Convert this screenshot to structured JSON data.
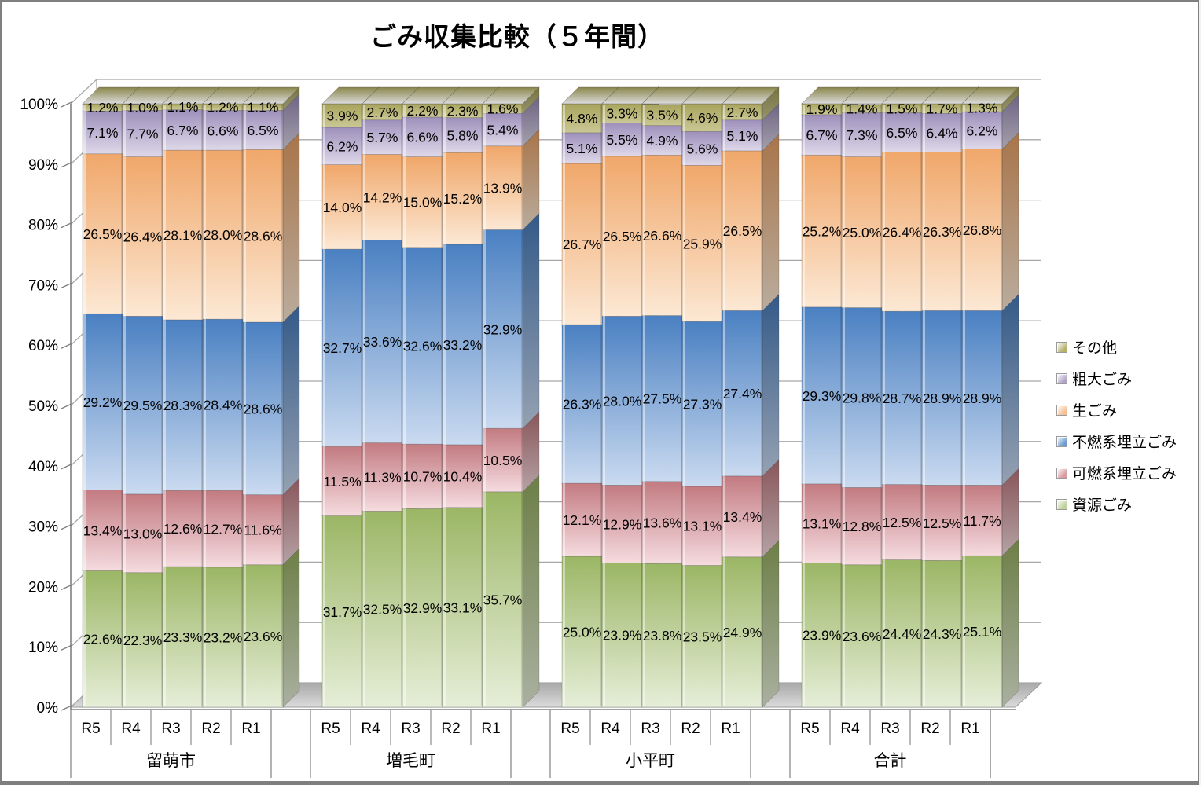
{
  "title": "ごみ収集比較（５年間）",
  "legend": {
    "items": [
      {
        "label": "その他",
        "color": "#b5b16d"
      },
      {
        "label": "粗大ごみ",
        "color": "#b1a4c9"
      },
      {
        "label": "生ごみ",
        "color": "#f5c096"
      },
      {
        "label": "不燃系埋立ごみ",
        "color": "#6d9ad0"
      },
      {
        "label": "可燃系埋立ごみ",
        "color": "#d89ba1"
      },
      {
        "label": "資源ごみ",
        "color": "#bfd19c"
      }
    ]
  },
  "chart_data": {
    "type": "bar",
    "variant": "3d-100-percent-stacked-column",
    "title": "ごみ収集比較（５年間）",
    "groups": [
      "留萌市",
      "増毛町",
      "小平町",
      "合計"
    ],
    "categories": [
      "R5",
      "R4",
      "R3",
      "R2",
      "R1"
    ],
    "y_axis": {
      "min": 0,
      "max": 100,
      "step": 10,
      "tick_labels": [
        "0%",
        "10%",
        "20%",
        "30%",
        "40%",
        "50%",
        "60%",
        "70%",
        "80%",
        "90%",
        "100%"
      ]
    },
    "label_format": "0.0%",
    "series": [
      {
        "name": "資源ごみ",
        "color_top": "#9bb665",
        "color_bottom": "#e6eed8",
        "values": [
          [
            22.6,
            22.3,
            23.3,
            23.2,
            23.6
          ],
          [
            31.7,
            32.5,
            32.9,
            33.1,
            35.7
          ],
          [
            25.0,
            23.9,
            23.8,
            23.5,
            24.9
          ],
          [
            23.9,
            23.6,
            24.4,
            24.3,
            25.1
          ]
        ]
      },
      {
        "name": "可燃系埋立ごみ",
        "color_top": "#c27b81",
        "color_bottom": "#f5dbdf",
        "values": [
          [
            13.4,
            13.0,
            12.6,
            12.7,
            11.6
          ],
          [
            11.5,
            11.3,
            10.7,
            10.4,
            10.5
          ],
          [
            12.1,
            12.9,
            13.6,
            13.1,
            13.4
          ],
          [
            13.1,
            12.8,
            12.5,
            12.5,
            11.7
          ]
        ]
      },
      {
        "name": "不燃系埋立ごみ",
        "color_top": "#4a80c2",
        "color_bottom": "#cadaf0",
        "values": [
          [
            29.2,
            29.5,
            28.3,
            28.4,
            28.6
          ],
          [
            32.7,
            33.6,
            32.6,
            33.2,
            32.9
          ],
          [
            26.3,
            28.0,
            27.5,
            27.3,
            27.4
          ],
          [
            29.3,
            29.8,
            28.7,
            28.9,
            28.9
          ]
        ]
      },
      {
        "name": "生ごみ",
        "color_top": "#f0a76a",
        "color_bottom": "#fce8d4",
        "values": [
          [
            26.5,
            26.4,
            28.1,
            28.0,
            28.6
          ],
          [
            14.0,
            14.2,
            15.0,
            15.2,
            13.9
          ],
          [
            26.7,
            26.5,
            26.6,
            25.9,
            26.5
          ],
          [
            25.2,
            25.0,
            26.4,
            26.3,
            26.8
          ]
        ]
      },
      {
        "name": "粗大ごみ",
        "color_top": "#9d90bb",
        "color_bottom": "#ded8e9",
        "values": [
          [
            7.1,
            7.7,
            6.7,
            6.6,
            6.5
          ],
          [
            6.2,
            5.7,
            6.6,
            5.8,
            5.4
          ],
          [
            5.1,
            5.5,
            4.9,
            5.6,
            5.1
          ],
          [
            6.7,
            7.3,
            6.5,
            6.4,
            6.2
          ]
        ]
      },
      {
        "name": "その他",
        "color_top": "#a8a45c",
        "color_bottom": "#cbc795",
        "values": [
          [
            1.2,
            1.0,
            1.1,
            1.2,
            1.1
          ],
          [
            3.9,
            2.7,
            2.2,
            2.3,
            1.6
          ],
          [
            4.8,
            3.3,
            3.5,
            4.6,
            2.7
          ],
          [
            1.9,
            1.4,
            1.5,
            1.7,
            1.3
          ]
        ]
      }
    ]
  }
}
